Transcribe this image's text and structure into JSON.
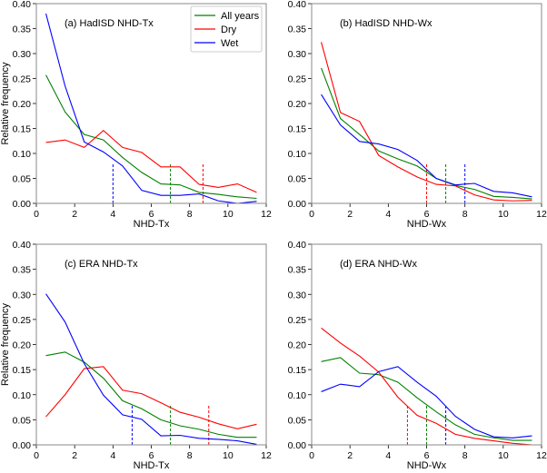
{
  "chart_data": [
    {
      "type": "line",
      "title": "(a) HadISD NHD-Tx",
      "xlabel": "NHD-Tx",
      "ylabel": "Relative frequency",
      "xlim": [
        0,
        12
      ],
      "ylim": [
        0,
        0.4
      ],
      "xticks": [
        "0",
        "2",
        "4",
        "6",
        "8",
        "10",
        "12"
      ],
      "yticks": [
        "0.00",
        "0.05",
        "0.10",
        "0.15",
        "0.20",
        "0.25",
        "0.30",
        "0.35",
        "0.40"
      ],
      "legend": "top-right",
      "x": [
        0.5,
        1.5,
        2.5,
        3.5,
        4.5,
        5.5,
        6.5,
        7.5,
        8.5,
        9.5,
        10.5,
        11.5
      ],
      "series": [
        {
          "name": "All years",
          "color": "#008000",
          "values": [
            0.257,
            0.183,
            0.138,
            0.127,
            0.092,
            0.062,
            0.039,
            0.037,
            0.022,
            0.018,
            0.013,
            0.01
          ],
          "median": 7.0
        },
        {
          "name": "Dry",
          "color": "#ff0000",
          "values": [
            0.122,
            0.127,
            0.112,
            0.146,
            0.112,
            0.102,
            0.073,
            0.073,
            0.038,
            0.032,
            0.039,
            0.022
          ],
          "median": 8.7
        },
        {
          "name": "Wet",
          "color": "#0000ff",
          "values": [
            0.38,
            0.235,
            0.123,
            0.103,
            0.075,
            0.026,
            0.016,
            0.016,
            0.019,
            0.005,
            0.0,
            0.004
          ],
          "median": 4.0
        }
      ]
    },
    {
      "type": "line",
      "title": "(b) HadISD NHD-Wx",
      "xlabel": "NHD-Wx",
      "ylabel": "",
      "xlim": [
        0,
        12
      ],
      "ylim": [
        0,
        0.4
      ],
      "xticks": [
        "0",
        "2",
        "4",
        "6",
        "8",
        "10",
        "12"
      ],
      "yticks": [
        "0.00",
        "0.05",
        "0.10",
        "0.15",
        "0.20",
        "0.25",
        "0.30",
        "0.35",
        "0.40"
      ],
      "x": [
        0.5,
        1.5,
        2.5,
        3.5,
        4.5,
        5.5,
        6.5,
        7.5,
        8.5,
        9.5,
        10.5,
        11.5
      ],
      "series": [
        {
          "name": "All years",
          "color": "#008000",
          "values": [
            0.271,
            0.17,
            0.138,
            0.105,
            0.089,
            0.075,
            0.05,
            0.036,
            0.028,
            0.014,
            0.012,
            0.009
          ],
          "median": 7.0
        },
        {
          "name": "Dry",
          "color": "#ff0000",
          "values": [
            0.323,
            0.182,
            0.164,
            0.096,
            0.073,
            0.053,
            0.038,
            0.035,
            0.017,
            0.007,
            0.005,
            0.006
          ],
          "median": 6.0
        },
        {
          "name": "Wet",
          "color": "#0000ff",
          "values": [
            0.218,
            0.157,
            0.124,
            0.119,
            0.108,
            0.086,
            0.05,
            0.037,
            0.04,
            0.024,
            0.021,
            0.013
          ],
          "median": 8.0
        }
      ]
    },
    {
      "type": "line",
      "title": "(c) ERA NHD-Tx",
      "xlabel": "NHD-Tx",
      "ylabel": "Relative frequency",
      "xlim": [
        0,
        12
      ],
      "ylim": [
        0,
        0.4
      ],
      "xticks": [
        "0",
        "2",
        "4",
        "6",
        "8",
        "10",
        "12"
      ],
      "yticks": [
        "0.00",
        "0.05",
        "0.10",
        "0.15",
        "0.20",
        "0.25",
        "0.30",
        "0.35",
        "0.40"
      ],
      "x": [
        0.5,
        1.5,
        2.5,
        3.5,
        4.5,
        5.5,
        6.5,
        7.5,
        8.5,
        9.5,
        10.5,
        11.5
      ],
      "series": [
        {
          "name": "All years",
          "color": "#008000",
          "values": [
            0.178,
            0.185,
            0.165,
            0.133,
            0.088,
            0.072,
            0.05,
            0.038,
            0.031,
            0.021,
            0.015,
            0.015
          ],
          "median": 7.0
        },
        {
          "name": "Dry",
          "color": "#ff0000",
          "values": [
            0.056,
            0.1,
            0.152,
            0.156,
            0.109,
            0.102,
            0.084,
            0.065,
            0.055,
            0.042,
            0.032,
            0.041
          ],
          "median": 9.0
        },
        {
          "name": "Wet",
          "color": "#0000ff",
          "values": [
            0.301,
            0.245,
            0.162,
            0.099,
            0.06,
            0.051,
            0.018,
            0.019,
            0.013,
            0.011,
            0.008,
            0.001
          ],
          "median": 5.0
        }
      ]
    },
    {
      "type": "line",
      "title": "(d) ERA NHD-Wx",
      "xlabel": "NHD-Wx",
      "ylabel": "",
      "xlim": [
        0,
        12
      ],
      "ylim": [
        0,
        0.4
      ],
      "xticks": [
        "0",
        "2",
        "4",
        "6",
        "8",
        "10",
        "12"
      ],
      "yticks": [
        "0.00",
        "0.05",
        "0.10",
        "0.15",
        "0.20",
        "0.25",
        "0.30",
        "0.35",
        "0.40"
      ],
      "x": [
        0.5,
        1.5,
        2.5,
        3.5,
        4.5,
        5.5,
        6.5,
        7.5,
        8.5,
        9.5,
        10.5,
        11.5
      ],
      "series": [
        {
          "name": "All years",
          "color": "#008000",
          "values": [
            0.166,
            0.174,
            0.143,
            0.14,
            0.125,
            0.094,
            0.066,
            0.04,
            0.021,
            0.014,
            0.009,
            0.009
          ],
          "median": 6.0
        },
        {
          "name": "Dry",
          "color": "#ff0000",
          "values": [
            0.233,
            0.203,
            0.177,
            0.145,
            0.095,
            0.059,
            0.043,
            0.021,
            0.013,
            0.008,
            0.003,
            0.0
          ],
          "median": 5.0
        },
        {
          "name": "Wet",
          "color": "#0000ff",
          "values": [
            0.106,
            0.121,
            0.116,
            0.146,
            0.156,
            0.125,
            0.097,
            0.057,
            0.031,
            0.016,
            0.014,
            0.018
          ],
          "median": 7.0
        }
      ]
    }
  ]
}
